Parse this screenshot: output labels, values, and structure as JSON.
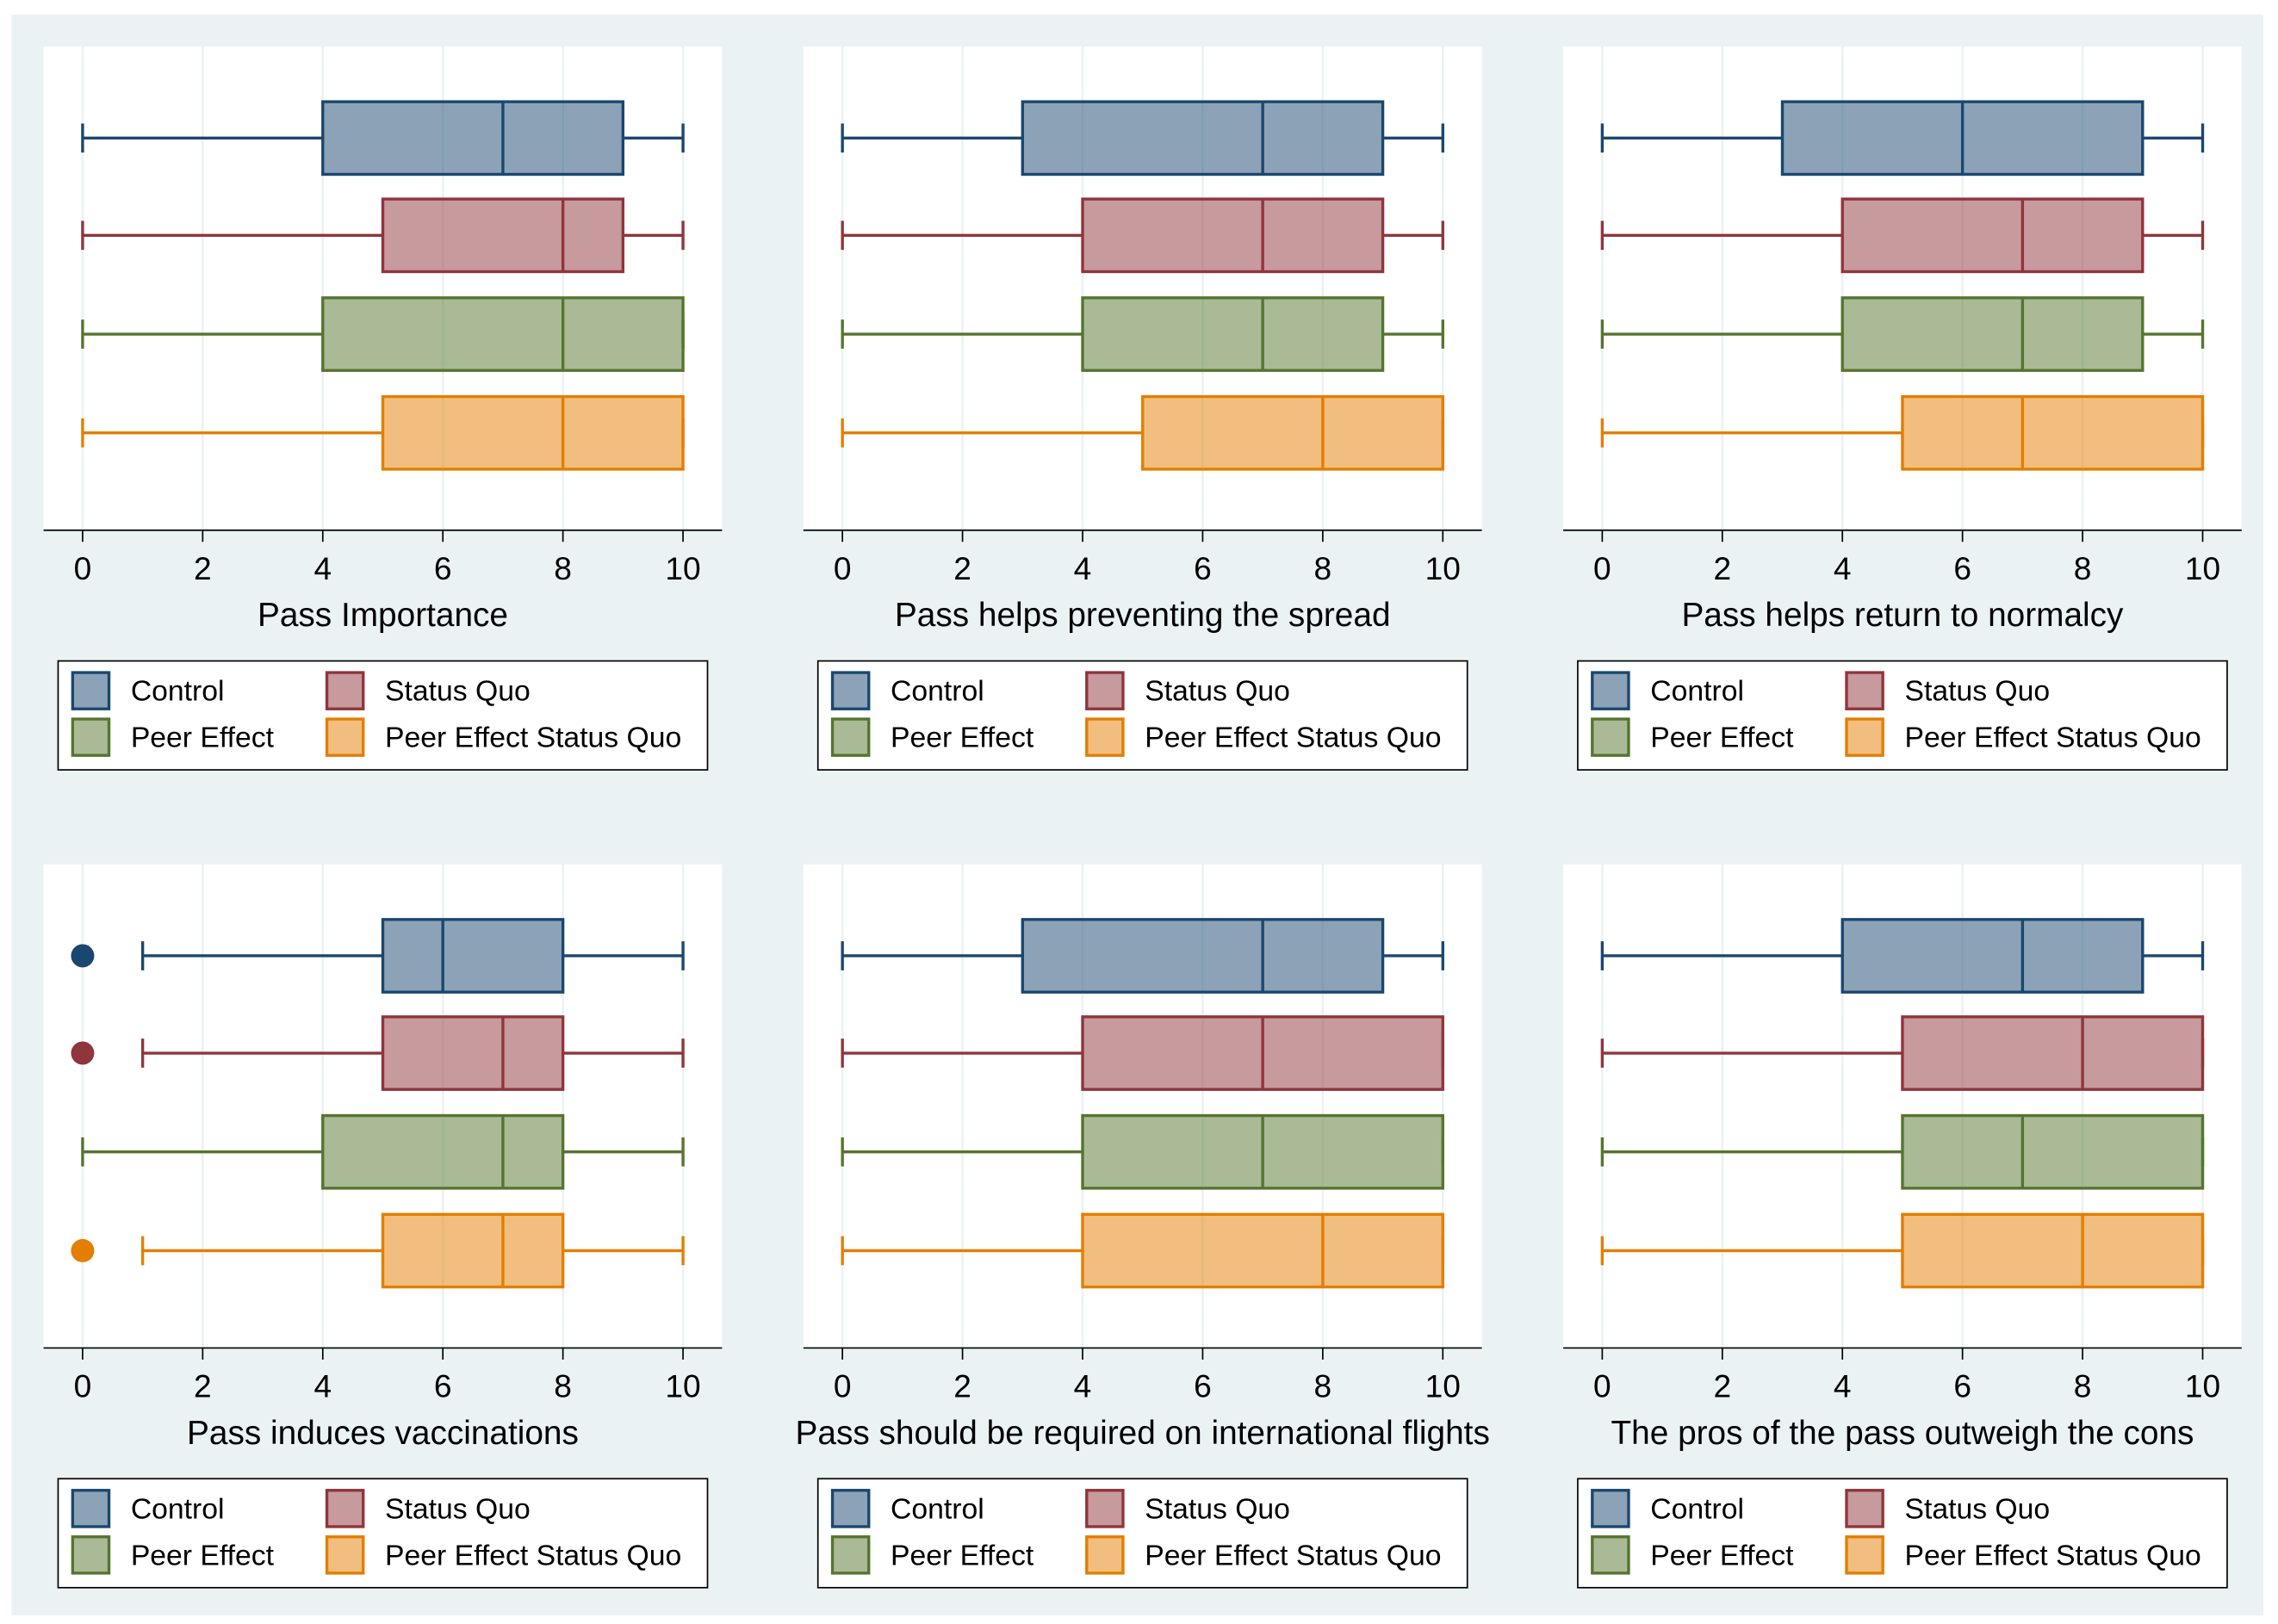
{
  "chart_data": [
    {
      "type": "box",
      "x_label": "Pass Importance",
      "xlim": [
        -0.65,
        10.65
      ],
      "xticks": [
        0,
        2,
        4,
        6,
        8,
        10
      ],
      "grid": true,
      "series": [
        {
          "name": "Control",
          "color": "#1a476f",
          "min": 0,
          "q1": 4,
          "median": 7,
          "q3": 9,
          "max": 10,
          "outliers": []
        },
        {
          "name": "Status Quo",
          "color": "#90353b",
          "min": 0,
          "q1": 5,
          "median": 8,
          "q3": 9,
          "max": 10,
          "outliers": []
        },
        {
          "name": "Peer Effect",
          "color": "#55752f",
          "min": 0,
          "q1": 4,
          "median": 8,
          "q3": 10,
          "max": 10,
          "outliers": []
        },
        {
          "name": "Peer Effect Status Quo",
          "color": "#e37e00",
          "min": 0,
          "q1": 5,
          "median": 8,
          "q3": 10,
          "max": 10,
          "outliers": []
        }
      ]
    },
    {
      "type": "box",
      "x_label": "Pass helps preventing the spread",
      "xlim": [
        -0.65,
        10.65
      ],
      "xticks": [
        0,
        2,
        4,
        6,
        8,
        10
      ],
      "grid": true,
      "series": [
        {
          "name": "Control",
          "color": "#1a476f",
          "min": 0,
          "q1": 3,
          "median": 7,
          "q3": 9,
          "max": 10,
          "outliers": []
        },
        {
          "name": "Status Quo",
          "color": "#90353b",
          "min": 0,
          "q1": 4,
          "median": 7,
          "q3": 9,
          "max": 10,
          "outliers": []
        },
        {
          "name": "Peer Effect",
          "color": "#55752f",
          "min": 0,
          "q1": 4,
          "median": 7,
          "q3": 9,
          "max": 10,
          "outliers": []
        },
        {
          "name": "Peer Effect Status Quo",
          "color": "#e37e00",
          "min": 0,
          "q1": 5,
          "median": 8,
          "q3": 10,
          "max": 10,
          "outliers": []
        }
      ]
    },
    {
      "type": "box",
      "x_label": "Pass helps return to normalcy",
      "xlim": [
        -0.65,
        10.65
      ],
      "xticks": [
        0,
        2,
        4,
        6,
        8,
        10
      ],
      "grid": true,
      "series": [
        {
          "name": "Control",
          "color": "#1a476f",
          "min": 0,
          "q1": 3,
          "median": 6,
          "q3": 9,
          "max": 10,
          "outliers": []
        },
        {
          "name": "Status Quo",
          "color": "#90353b",
          "min": 0,
          "q1": 4,
          "median": 7,
          "q3": 9,
          "max": 10,
          "outliers": []
        },
        {
          "name": "Peer Effect",
          "color": "#55752f",
          "min": 0,
          "q1": 4,
          "median": 7,
          "q3": 9,
          "max": 10,
          "outliers": []
        },
        {
          "name": "Peer Effect Status Quo",
          "color": "#e37e00",
          "min": 0,
          "q1": 5,
          "median": 7,
          "q3": 10,
          "max": 10,
          "outliers": []
        }
      ]
    },
    {
      "type": "box",
      "x_label": "Pass induces vaccinations",
      "xlim": [
        -0.65,
        10.65
      ],
      "xticks": [
        0,
        2,
        4,
        6,
        8,
        10
      ],
      "grid": true,
      "series": [
        {
          "name": "Control",
          "color": "#1a476f",
          "min": 1,
          "q1": 5,
          "median": 6,
          "q3": 8,
          "max": 10,
          "outliers": [
            0
          ]
        },
        {
          "name": "Status Quo",
          "color": "#90353b",
          "min": 1,
          "q1": 5,
          "median": 7,
          "q3": 8,
          "max": 10,
          "outliers": [
            0
          ]
        },
        {
          "name": "Peer Effect",
          "color": "#55752f",
          "min": 0,
          "q1": 4,
          "median": 7,
          "q3": 8,
          "max": 10,
          "outliers": []
        },
        {
          "name": "Peer Effect Status Quo",
          "color": "#e37e00",
          "min": 1,
          "q1": 5,
          "median": 7,
          "q3": 8,
          "max": 10,
          "outliers": [
            0
          ]
        }
      ]
    },
    {
      "type": "box",
      "x_label": "Pass should be required on international flights",
      "xlim": [
        -0.65,
        10.65
      ],
      "xticks": [
        0,
        2,
        4,
        6,
        8,
        10
      ],
      "grid": true,
      "series": [
        {
          "name": "Control",
          "color": "#1a476f",
          "min": 0,
          "q1": 3,
          "median": 7,
          "q3": 9,
          "max": 10,
          "outliers": []
        },
        {
          "name": "Status Quo",
          "color": "#90353b",
          "min": 0,
          "q1": 4,
          "median": 7,
          "q3": 10,
          "max": 10,
          "outliers": []
        },
        {
          "name": "Peer Effect",
          "color": "#55752f",
          "min": 0,
          "q1": 4,
          "median": 7,
          "q3": 10,
          "max": 10,
          "outliers": []
        },
        {
          "name": "Peer Effect Status Quo",
          "color": "#e37e00",
          "min": 0,
          "q1": 4,
          "median": 8,
          "q3": 10,
          "max": 10,
          "outliers": []
        }
      ]
    },
    {
      "type": "box",
      "x_label": "The pros of the pass outweigh the cons",
      "xlim": [
        -0.65,
        10.65
      ],
      "xticks": [
        0,
        2,
        4,
        6,
        8,
        10
      ],
      "grid": true,
      "series": [
        {
          "name": "Control",
          "color": "#1a476f",
          "min": 0,
          "q1": 4,
          "median": 7,
          "q3": 9,
          "max": 10,
          "outliers": []
        },
        {
          "name": "Status Quo",
          "color": "#90353b",
          "min": 0,
          "q1": 5,
          "median": 8,
          "q3": 10,
          "max": 10,
          "outliers": []
        },
        {
          "name": "Peer Effect",
          "color": "#55752f",
          "min": 0,
          "q1": 5,
          "median": 7,
          "q3": 10,
          "max": 10,
          "outliers": []
        },
        {
          "name": "Peer Effect Status Quo",
          "color": "#e37e00",
          "min": 0,
          "q1": 5,
          "median": 8,
          "q3": 10,
          "max": 10,
          "outliers": []
        }
      ]
    }
  ]
}
